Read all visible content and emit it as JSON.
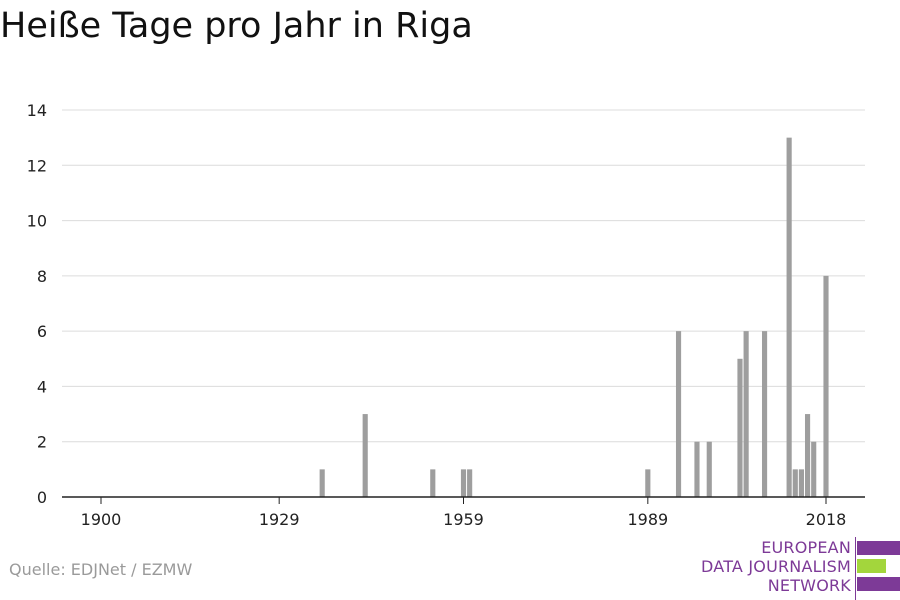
{
  "title": "Heiße Tage pro Jahr in Riga",
  "source": "Quelle: EDJNet / EZMW",
  "logo": {
    "line1": "EUROPEAN",
    "line2": "DATA JOURNALISM",
    "line3": "NETWORK",
    "colors": {
      "purple": "#7d3a97",
      "green": "#a3d63c"
    }
  },
  "chart_data": {
    "type": "bar",
    "title": "Heiße Tage pro Jahr in Riga",
    "xlabel": "",
    "ylabel": "",
    "xlim": [
      1900,
      2018
    ],
    "ylim": [
      0,
      14
    ],
    "xticks": [
      1900,
      1929,
      1959,
      1989,
      2018
    ],
    "yticks": [
      0,
      2,
      4,
      6,
      8,
      10,
      12,
      14
    ],
    "grid": true,
    "bar_color": "#9e9e9e",
    "x": [
      1936,
      1943,
      1954,
      1959,
      1960,
      1989,
      1994,
      1997,
      1999,
      2004,
      2005,
      2008,
      2012,
      2013,
      2014,
      2015,
      2016,
      2018
    ],
    "values": [
      1,
      3,
      1,
      1,
      1,
      1,
      6,
      2,
      2,
      5,
      6,
      6,
      13,
      1,
      1,
      3,
      2,
      8
    ]
  }
}
